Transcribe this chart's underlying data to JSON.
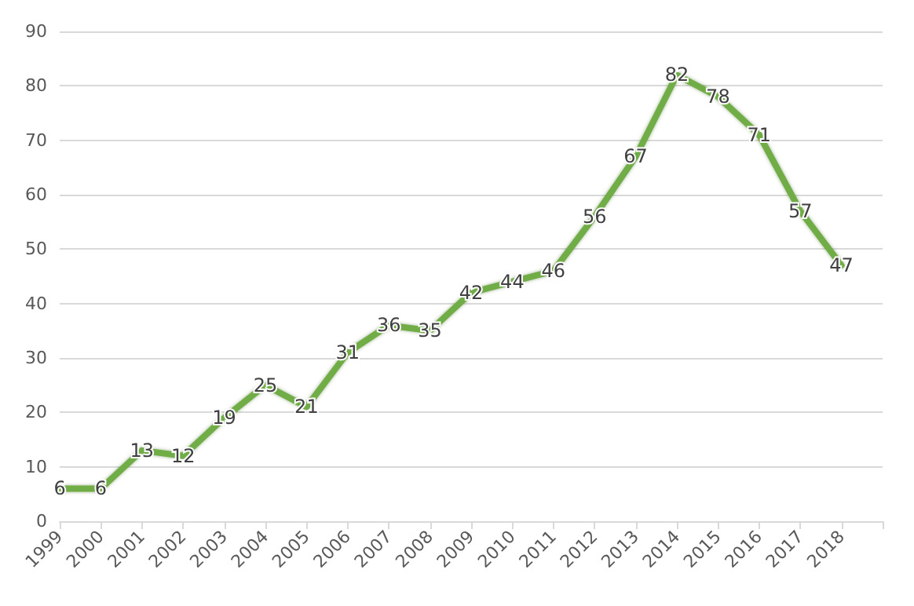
{
  "chart_data": {
    "type": "line",
    "categories": [
      "1999",
      "2000",
      "2001",
      "2002",
      "2003",
      "2004",
      "2005",
      "2006",
      "2007",
      "2008",
      "2009",
      "2010",
      "2011",
      "2012",
      "2013",
      "2014",
      "2015",
      "2016",
      "2017",
      "2018",
      null
    ],
    "series": [
      {
        "color": "#70ad47",
        "values": [
          6,
          6,
          13,
          12,
          19,
          25,
          21,
          31,
          36,
          35,
          42,
          44,
          46,
          56,
          67,
          82,
          78,
          71,
          57,
          47,
          null
        ]
      }
    ],
    "ylim": [
      0,
      90
    ],
    "yticks": [
      0,
      10,
      20,
      30,
      40,
      50,
      60,
      70,
      80,
      90
    ],
    "grid": "y",
    "data_labels": true,
    "marker": "none",
    "line_style": "solid"
  }
}
